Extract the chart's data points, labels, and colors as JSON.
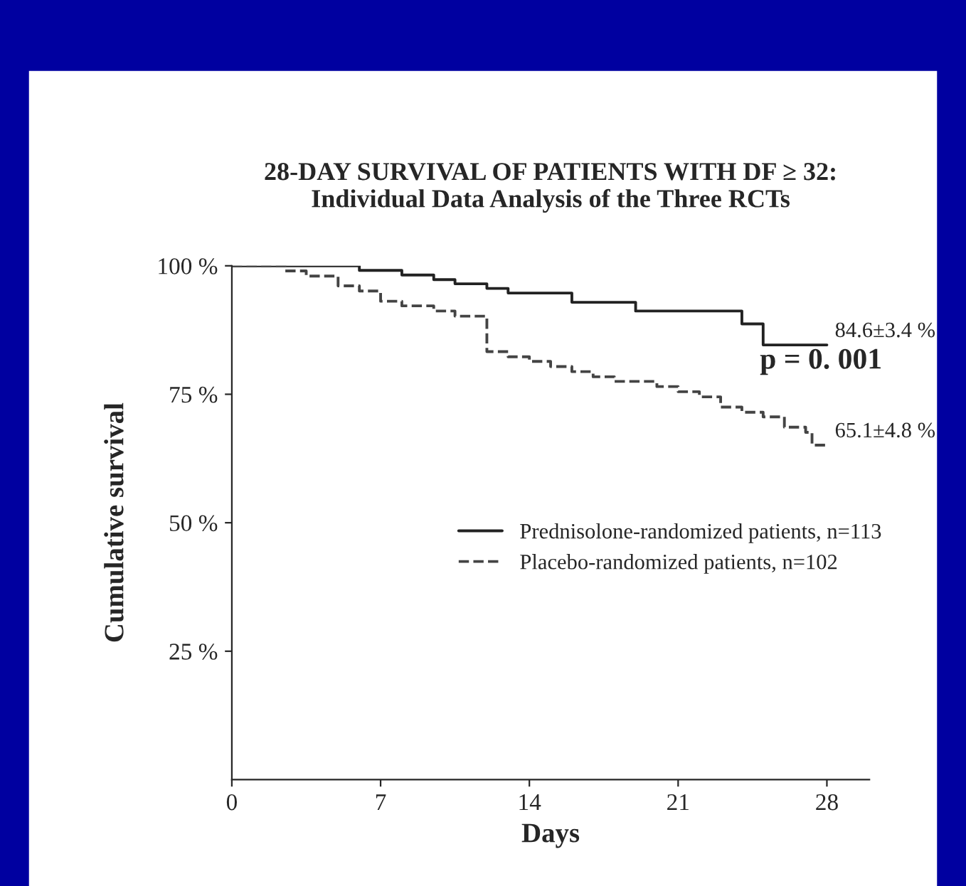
{
  "chart_data": {
    "type": "step",
    "title": "28-DAY SURVIVAL OF PATIENTS WITH DF ≥ 32:\nIndividual Data Analysis of the Three RCTs",
    "xlabel": "Days",
    "ylabel": "Cumulative survival",
    "series": [
      {
        "name": "Prednisolone-randomized patients, n=113",
        "color": "#222222",
        "line_style": "solid",
        "x": [
          0,
          6,
          8,
          9.5,
          10.5,
          12,
          13,
          16,
          19,
          24,
          25,
          28
        ],
        "values": [
          100,
          99.1,
          98.2,
          97.3,
          96.5,
          95.6,
          94.7,
          92.9,
          91.2,
          88.7,
          84.6,
          84.6
        ]
      },
      {
        "name": "Placebo-randomized patients, n=102",
        "color": "#444444",
        "line_style": "dashed",
        "x": [
          0,
          2.5,
          3.5,
          5,
          6,
          7,
          8,
          9.5,
          10.5,
          12,
          13,
          14,
          15,
          16,
          17,
          18,
          20,
          21,
          22,
          23,
          24,
          25,
          26,
          27,
          27.3,
          28
        ],
        "values": [
          100,
          99,
          98,
          96.1,
          95.1,
          93.1,
          92.2,
          91.2,
          90.2,
          83.3,
          82.3,
          81.4,
          80.4,
          79.4,
          78.4,
          77.5,
          76.5,
          75.5,
          74.5,
          72.5,
          71.5,
          70.6,
          68.6,
          67.6,
          65.1,
          65.1
        ]
      }
    ],
    "xlim": [
      0,
      30
    ],
    "xticks": [
      0,
      7,
      14,
      21,
      28
    ],
    "ylim": [
      0,
      100
    ],
    "yticks": [
      {
        "value": 25,
        "label": "25 %"
      },
      {
        "value": 50,
        "label": "50 %"
      },
      {
        "value": 75,
        "label": "75 %"
      },
      {
        "value": 100,
        "label": "100 %"
      }
    ],
    "annotations": [
      {
        "text": "84.6±3.4 %",
        "x": 28,
        "y": 84.6
      },
      {
        "text": "65.1±4.8 %",
        "x": 28,
        "y": 65.1
      },
      "p = 0. 001"
    ],
    "legend": "right",
    "grid": false
  }
}
